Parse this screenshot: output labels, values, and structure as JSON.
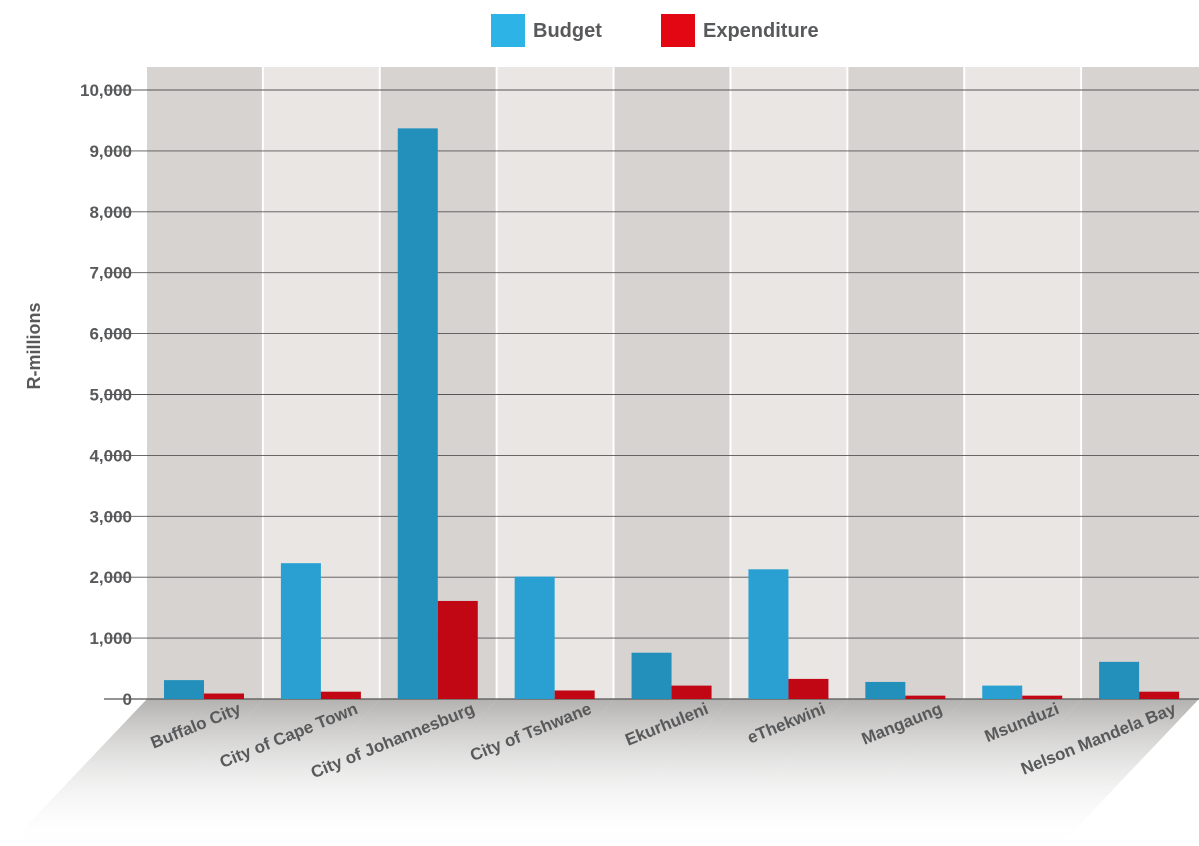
{
  "chart_data": {
    "type": "bar",
    "title": "",
    "xlabel": "",
    "ylabel": "R-millions",
    "ylim": [
      0,
      10000
    ],
    "yticks": [
      0,
      1000,
      2000,
      3000,
      4000,
      5000,
      6000,
      7000,
      8000,
      9000,
      10000
    ],
    "ytick_labels": [
      "0",
      "1,000",
      "2,000",
      "3,000",
      "4,000",
      "5,000",
      "6,000",
      "7,000",
      "8,000",
      "9,000",
      "10,000"
    ],
    "grid": true,
    "legend_position": "top-center",
    "categories": [
      "Buffalo City",
      "City of Cape Town",
      "City of Johannesburg",
      "City of Tshwane",
      "Ekurhuleni",
      "eThekwini",
      "Mangaung",
      "Msunduzi",
      "Nelson Mandela Bay"
    ],
    "series": [
      {
        "name": "Budget",
        "values": [
          310,
          2230,
          9370,
          2010,
          760,
          2130,
          280,
          220,
          610
        ]
      },
      {
        "name": "Expenditure",
        "values": [
          90,
          120,
          1610,
          140,
          220,
          330,
          55,
          55,
          120
        ]
      }
    ]
  },
  "colors": {
    "budget_legend": "#2eb3e6",
    "budget_bar_light": "#2aa0d2",
    "budget_bar_dark": "#2390bb",
    "expenditure_legend": "#e30613",
    "expenditure_bar": "#c10714",
    "band_dark": "#d6d3d1",
    "band_light": "#e9e6e4",
    "gridline": "#555555",
    "text": "#58595b"
  }
}
